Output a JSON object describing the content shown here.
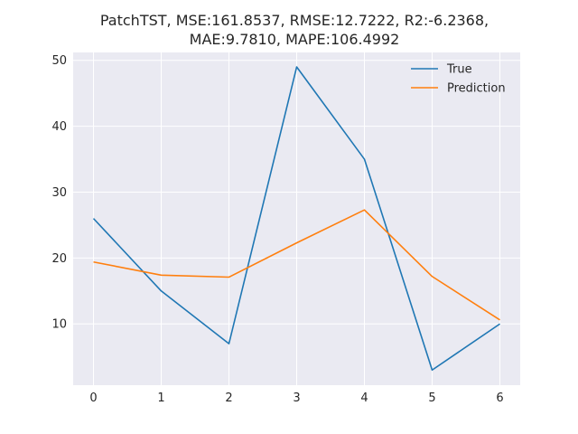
{
  "chart_data": {
    "type": "line",
    "title_lines": [
      "PatchTST, MSE:161.8537, RMSE:12.7222, R2:-6.2368,",
      "MAE:9.7810, MAPE:106.4992"
    ],
    "xlabel": "",
    "ylabel": "",
    "x": [
      0,
      1,
      2,
      3,
      4,
      5,
      6
    ],
    "xlim": [
      -0.3,
      6.3
    ],
    "ylim": [
      0.7,
      51.2
    ],
    "xticks": [
      0,
      1,
      2,
      3,
      4,
      5,
      6
    ],
    "xtick_labels": [
      "0",
      "1",
      "2",
      "3",
      "4",
      "5",
      "6"
    ],
    "yticks": [
      10,
      20,
      30,
      40,
      50
    ],
    "ytick_labels": [
      "10",
      "20",
      "30",
      "40",
      "50"
    ],
    "grid": true,
    "legend_position": "top-right",
    "background_color": "#eaeaf2",
    "grid_color": "#ffffff",
    "series": [
      {
        "name": "True",
        "color": "#1f77b4",
        "values": [
          26,
          15,
          7,
          49,
          35,
          3,
          10
        ]
      },
      {
        "name": "Prediction",
        "color": "#ff7f0e",
        "values": [
          19.4,
          17.4,
          17.1,
          22.3,
          27.3,
          17.2,
          10.6
        ]
      }
    ]
  }
}
